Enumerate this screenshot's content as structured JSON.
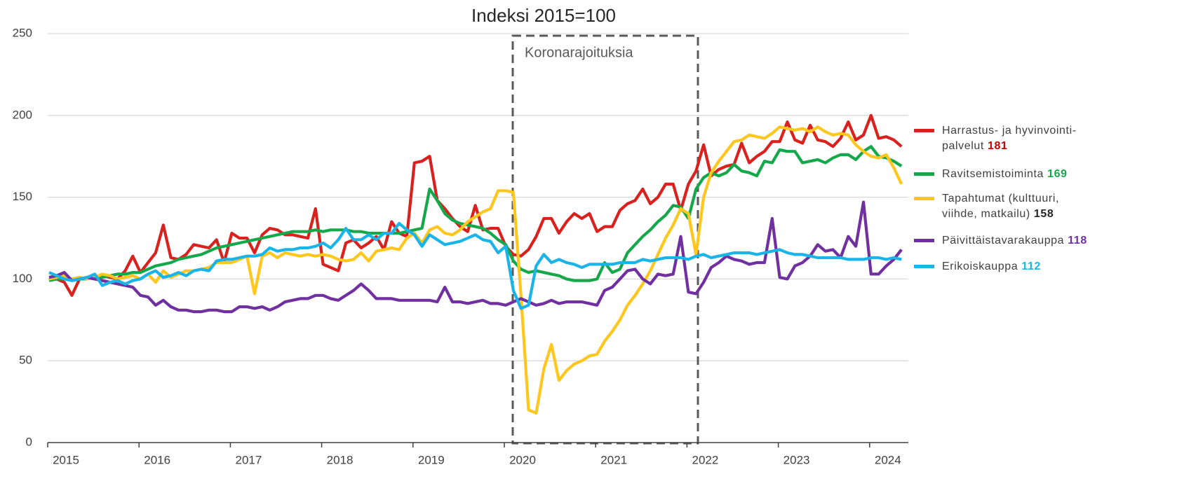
{
  "chart_data": {
    "type": "line",
    "title": "Indeksi 2015=100",
    "annotation": "Koronarajoituksia",
    "categories": [
      "2015",
      null,
      null,
      null,
      null,
      null,
      null,
      null,
      null,
      null,
      null,
      null,
      "2016",
      null,
      null,
      null,
      null,
      null,
      null,
      null,
      null,
      null,
      null,
      null,
      "2017",
      null,
      null,
      null,
      null,
      null,
      null,
      null,
      null,
      null,
      null,
      null,
      "2018",
      null,
      null,
      null,
      null,
      null,
      null,
      null,
      null,
      null,
      null,
      null,
      "2019",
      null,
      null,
      null,
      null,
      null,
      null,
      null,
      null,
      null,
      null,
      null,
      "2020",
      null,
      null,
      null,
      null,
      null,
      null,
      null,
      null,
      null,
      null,
      null,
      "2021",
      null,
      null,
      null,
      null,
      null,
      null,
      null,
      null,
      null,
      null,
      null,
      "2022",
      null,
      null,
      null,
      null,
      null,
      null,
      null,
      null,
      null,
      null,
      null,
      "2023",
      null,
      null,
      null,
      null,
      null,
      null,
      null,
      null,
      null,
      null,
      null,
      "2024",
      null,
      null,
      null,
      null
    ],
    "ylim": [
      0,
      250
    ],
    "yticks": [
      0,
      50,
      100,
      150,
      200,
      250
    ],
    "grid": true,
    "legend": "right",
    "series": [
      {
        "name": "Harrastus- ja hyvinvointi-\npalvelut",
        "color": "#d9211e",
        "legend_value_color": "#c00000",
        "values": [
          101,
          100,
          98,
          90,
          100,
          101,
          100,
          102,
          101,
          100,
          105,
          114,
          104,
          110,
          116,
          133,
          113,
          112,
          115,
          121,
          120,
          119,
          124,
          110,
          128,
          125,
          125,
          116,
          127,
          131,
          130,
          127,
          127,
          126,
          125,
          143,
          109,
          107,
          105,
          122,
          124,
          119,
          122,
          126,
          118,
          135,
          128,
          126,
          171,
          172,
          175,
          148,
          143,
          137,
          132,
          129,
          145,
          130,
          131,
          131,
          120,
          115,
          114,
          118,
          126,
          137,
          137,
          128,
          135,
          140,
          137,
          140,
          129,
          132,
          132,
          142,
          146,
          148,
          155,
          146,
          150,
          158,
          158,
          142,
          158,
          166,
          182,
          163,
          167,
          169,
          170,
          183,
          171,
          175,
          178,
          184,
          184,
          196,
          185,
          183,
          194,
          185,
          184,
          181,
          186,
          196,
          185,
          188,
          200,
          186,
          187,
          185,
          181
        ]
      },
      {
        "name": "Ravitsemistoiminta",
        "color": "#14a84b",
        "legend_value_color": "#14a84b",
        "values": [
          99,
          100,
          100,
          100,
          100,
          100,
          101,
          101,
          102,
          103,
          103,
          104,
          104,
          106,
          108,
          109,
          110,
          112,
          113,
          114,
          115,
          117,
          119,
          120,
          121,
          122,
          123,
          124,
          125,
          126,
          127,
          128,
          129,
          129,
          129,
          130,
          129,
          130,
          130,
          130,
          129,
          129,
          128,
          128,
          128,
          128,
          128,
          129,
          130,
          131,
          155,
          148,
          140,
          136,
          134,
          133,
          132,
          131,
          128,
          124,
          121,
          111,
          106,
          104,
          105,
          104,
          103,
          102,
          100,
          99,
          99,
          99,
          100,
          110,
          104,
          106,
          116,
          121,
          126,
          130,
          135,
          139,
          145,
          144,
          137,
          155,
          162,
          165,
          163,
          165,
          170,
          166,
          165,
          163,
          172,
          171,
          179,
          178,
          178,
          171,
          172,
          173,
          171,
          174,
          176,
          176,
          173,
          178,
          181,
          175,
          174,
          172,
          169
        ]
      },
      {
        "name": "Tapahtumat (kulttuuri,\nviihde, matkailu)",
        "color": "#ffc61e",
        "legend_value_color": "#262626",
        "values": [
          100,
          101,
          102,
          100,
          101,
          100,
          101,
          103,
          102,
          100,
          101,
          102,
          100,
          103,
          98,
          105,
          101,
          103,
          105,
          105,
          106,
          107,
          110,
          110,
          110,
          112,
          114,
          91,
          114,
          116,
          113,
          116,
          115,
          114,
          115,
          114,
          115,
          114,
          112,
          111,
          112,
          116,
          111,
          117,
          118,
          119,
          118,
          125,
          128,
          122,
          130,
          132,
          128,
          127,
          130,
          135,
          138,
          141,
          143,
          154,
          154,
          153,
          90,
          20,
          18,
          45,
          60,
          38,
          44,
          48,
          50,
          53,
          54,
          62,
          68,
          75,
          84,
          90,
          97,
          105,
          115,
          125,
          133,
          143,
          140,
          115,
          150,
          165,
          172,
          178,
          184,
          185,
          188,
          187,
          186,
          189,
          193,
          192,
          191,
          192,
          190,
          193,
          190,
          188,
          189,
          188,
          182,
          178,
          175,
          174,
          176,
          168,
          158
        ]
      },
      {
        "name": "Päivittäistavarakauppa",
        "color": "#7030a0",
        "legend_value_color": "#7030a0",
        "values": [
          101,
          102,
          104,
          99,
          100,
          101,
          100,
          99,
          98,
          97,
          96,
          95,
          90,
          89,
          84,
          87,
          83,
          81,
          81,
          80,
          80,
          81,
          81,
          80,
          80,
          83,
          83,
          82,
          83,
          81,
          83,
          86,
          87,
          88,
          88,
          90,
          90,
          88,
          87,
          90,
          93,
          97,
          93,
          88,
          88,
          88,
          87,
          87,
          87,
          87,
          87,
          86,
          95,
          86,
          86,
          85,
          86,
          87,
          85,
          85,
          84,
          86,
          88,
          86,
          84,
          85,
          87,
          85,
          86,
          86,
          86,
          85,
          84,
          93,
          95,
          100,
          105,
          106,
          100,
          97,
          103,
          102,
          103,
          126,
          92,
          91,
          98,
          107,
          110,
          114,
          112,
          111,
          109,
          110,
          110,
          137,
          101,
          100,
          108,
          110,
          114,
          121,
          117,
          118,
          113,
          126,
          120,
          147,
          103,
          103,
          108,
          112,
          118
        ]
      },
      {
        "name": "Erikoiskauppa",
        "color": "#1ab4e8",
        "legend_value_color": "#1ab4e8",
        "values": [
          104,
          102,
          100,
          99,
          100,
          101,
          103,
          96,
          98,
          99,
          97,
          99,
          100,
          103,
          105,
          101,
          102,
          104,
          102,
          105,
          106,
          105,
          111,
          112,
          112,
          113,
          114,
          114,
          115,
          119,
          117,
          118,
          118,
          119,
          119,
          120,
          122,
          119,
          124,
          131,
          124,
          124,
          127,
          124,
          128,
          128,
          134,
          130,
          127,
          120,
          127,
          124,
          121,
          122,
          123,
          125,
          127,
          124,
          123,
          116,
          120,
          93,
          82,
          84,
          108,
          115,
          110,
          112,
          110,
          109,
          107,
          109,
          109,
          109,
          109,
          110,
          110,
          110,
          112,
          111,
          112,
          113,
          113,
          113,
          112,
          114,
          115,
          113,
          114,
          115,
          116,
          116,
          116,
          115,
          116,
          117,
          118,
          116,
          115,
          115,
          114,
          113,
          113,
          113,
          113,
          112,
          112,
          112,
          113,
          113,
          112,
          113,
          112
        ]
      }
    ]
  }
}
